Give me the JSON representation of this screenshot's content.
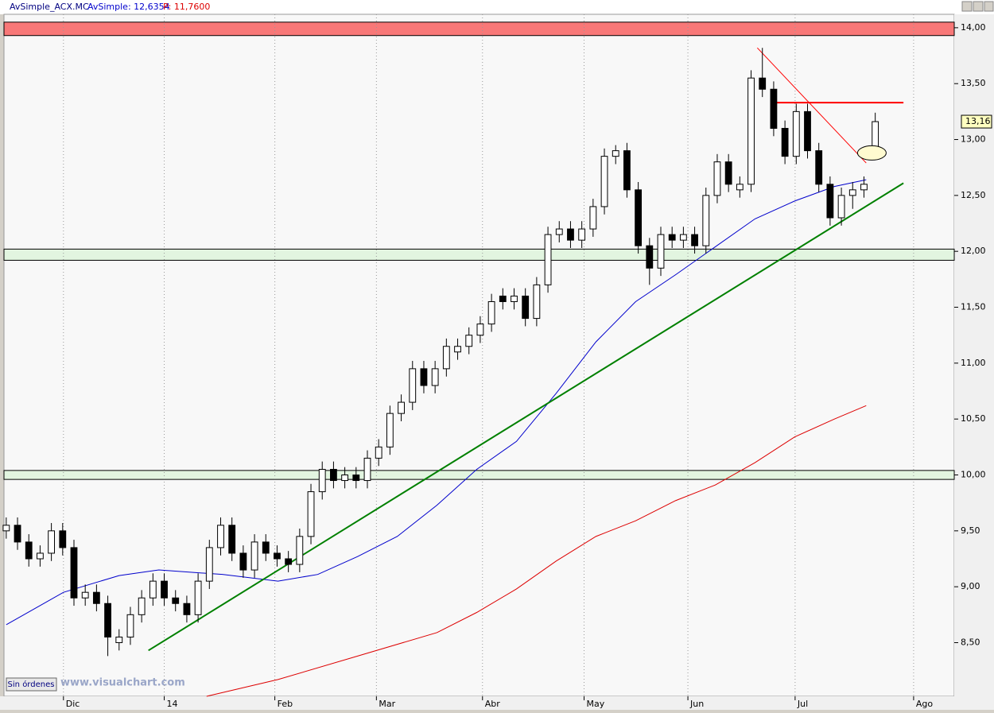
{
  "header": {
    "symbol": "AvSimple_ACX.MC",
    "average": "AvSimple: 12,6354",
    "price": "P: 11,7600"
  },
  "footer": {
    "button": "Sin órdenes",
    "watermark": "www.visualchart.com"
  },
  "chart_data": {
    "type": "candlestick",
    "open": [
      9.5,
      9.55,
      9.4,
      9.25,
      9.3,
      9.5,
      9.35,
      8.9,
      8.95,
      8.85,
      8.5,
      8.55,
      8.75,
      8.9,
      9.05,
      8.9,
      8.85,
      8.75,
      9.05,
      9.35,
      9.55,
      9.3,
      9.15,
      9.4,
      9.3,
      9.25,
      9.2,
      9.45,
      9.85,
      10.05,
      9.95,
      10.0,
      9.95,
      10.15,
      10.25,
      10.55,
      10.65,
      10.95,
      10.8,
      10.95,
      11.1,
      11.15,
      11.25,
      11.35,
      11.6,
      11.55,
      11.6,
      11.4,
      11.7,
      12.15,
      12.2,
      12.1,
      12.2,
      12.4,
      12.85,
      12.9,
      12.55,
      12.05,
      11.85,
      12.15,
      12.1,
      12.15,
      12.05,
      12.5,
      12.8,
      12.55,
      12.6,
      13.55,
      13.45,
      13.1,
      12.85,
      13.25,
      12.9,
      12.6,
      12.3,
      12.5,
      12.55,
      12.9
    ],
    "high": [
      9.62,
      9.62,
      9.47,
      9.37,
      9.57,
      9.57,
      9.42,
      9.02,
      9.02,
      8.92,
      8.62,
      8.82,
      8.97,
      9.12,
      9.12,
      8.97,
      8.92,
      9.12,
      9.42,
      9.62,
      9.62,
      9.37,
      9.47,
      9.47,
      9.37,
      9.32,
      9.52,
      9.92,
      10.12,
      10.12,
      10.07,
      10.07,
      10.22,
      10.32,
      10.62,
      10.72,
      11.02,
      11.02,
      11.02,
      11.22,
      11.22,
      11.32,
      11.42,
      11.62,
      11.67,
      11.67,
      11.67,
      11.77,
      12.22,
      12.27,
      12.27,
      12.27,
      12.47,
      12.92,
      12.95,
      12.97,
      12.62,
      12.12,
      12.22,
      12.22,
      12.22,
      12.22,
      12.57,
      12.87,
      12.87,
      12.67,
      13.62,
      13.82,
      13.52,
      13.17,
      13.32,
      13.32,
      12.97,
      12.67,
      12.57,
      12.62,
      12.67,
      13.24
    ],
    "low": [
      9.43,
      9.33,
      9.18,
      9.18,
      9.23,
      9.28,
      8.83,
      8.83,
      8.78,
      8.38,
      8.43,
      8.48,
      8.68,
      8.83,
      8.83,
      8.78,
      8.68,
      8.68,
      8.98,
      9.28,
      9.23,
      9.08,
      9.08,
      9.23,
      9.18,
      9.13,
      9.13,
      9.38,
      9.78,
      9.88,
      9.88,
      9.88,
      9.88,
      10.08,
      10.18,
      10.48,
      10.58,
      10.73,
      10.73,
      10.88,
      11.03,
      11.08,
      11.18,
      11.28,
      11.48,
      11.48,
      11.33,
      11.33,
      11.63,
      12.08,
      12.03,
      12.03,
      12.13,
      12.33,
      12.78,
      12.48,
      11.98,
      11.7,
      11.78,
      12.03,
      12.03,
      11.98,
      11.98,
      12.43,
      12.53,
      12.48,
      12.53,
      13.38,
      13.03,
      12.78,
      12.78,
      12.83,
      12.53,
      12.23,
      12.23,
      12.38,
      12.48,
      12.83
    ],
    "close": [
      9.55,
      9.4,
      9.25,
      9.3,
      9.5,
      9.35,
      8.9,
      8.95,
      8.85,
      8.55,
      8.55,
      8.75,
      8.9,
      9.05,
      8.9,
      8.85,
      8.75,
      9.05,
      9.35,
      9.55,
      9.3,
      9.15,
      9.4,
      9.3,
      9.25,
      9.2,
      9.45,
      9.85,
      10.05,
      9.95,
      10.0,
      9.95,
      10.15,
      10.25,
      10.55,
      10.65,
      10.95,
      10.8,
      10.95,
      11.15,
      11.15,
      11.25,
      11.35,
      11.55,
      11.55,
      11.6,
      11.4,
      11.7,
      12.15,
      12.2,
      12.1,
      12.2,
      12.4,
      12.85,
      12.9,
      12.55,
      12.05,
      11.85,
      12.15,
      12.1,
      12.15,
      12.05,
      12.5,
      12.8,
      12.6,
      12.6,
      13.55,
      13.45,
      13.1,
      12.85,
      13.25,
      12.9,
      12.6,
      12.3,
      12.5,
      12.55,
      12.6,
      13.16
    ],
    "averages": [
      {
        "color": "#0000cc",
        "x": [
          0,
          5.07,
          10,
          13.52,
          19.15,
          24.08,
          27.6,
          31.13,
          34.65,
          38.17,
          41.69,
          45.21,
          48.73,
          52.25,
          55.77,
          59.3,
          62.82,
          66.34,
          69.86,
          73.38,
          76.2
        ],
        "values": [
          8.66,
          8.95,
          9.1,
          9.15,
          9.11,
          9.05,
          9.11,
          9.27,
          9.45,
          9.73,
          10.05,
          10.3,
          10.73,
          11.19,
          11.55,
          11.79,
          12.04,
          12.29,
          12.45,
          12.58,
          12.64
        ]
      },
      {
        "color": "#dd0000",
        "x": [
          17.75,
          24.08,
          31.13,
          38.17,
          41.69,
          45.21,
          48.73,
          52.25,
          55.77,
          59.3,
          62.82,
          66.34,
          69.86,
          73.38,
          76.2
        ],
        "values": [
          8.02,
          8.17,
          8.38,
          8.59,
          8.77,
          8.98,
          9.23,
          9.45,
          9.59,
          9.77,
          9.91,
          10.11,
          10.34,
          10.5,
          10.62
        ]
      }
    ],
    "trendlines": [
      {
        "color": "#008000",
        "x": [
          12.6,
          79.5
        ],
        "values": [
          8.43,
          12.61
        ]
      },
      {
        "color": "#ff0000",
        "x": [
          66.55,
          76.2
        ],
        "values": [
          13.82,
          12.79
        ]
      },
      {
        "color": "#ff0000",
        "x": [
          67.8,
          79.5
        ],
        "values": [
          13.33,
          13.33
        ]
      }
    ],
    "zones": [
      {
        "color": "#f87878",
        "values": [
          13.93,
          14.05
        ]
      },
      {
        "color": "#e2f5e0",
        "values": [
          11.92,
          12.02
        ]
      },
      {
        "color": "#e2f5e0",
        "values": [
          9.96,
          10.04
        ]
      }
    ],
    "ellipse": {
      "x": 76.7,
      "value": 12.88
    },
    "last_price": {
      "value": 13.16,
      "label": "13,16"
    },
    "xlim": [
      -0.2,
      84
    ],
    "xticks": [
      {
        "value": 5.07,
        "label": "Dic"
      },
      {
        "value": 14.0,
        "label": "14"
      },
      {
        "value": 23.8,
        "label": "Feb"
      },
      {
        "value": 32.8,
        "label": "Mar"
      },
      {
        "value": 42.2,
        "label": "Abr"
      },
      {
        "value": 51.2,
        "label": "May"
      },
      {
        "value": 60.4,
        "label": "Jun"
      },
      {
        "value": 69.9,
        "label": "Jul"
      },
      {
        "value": 80.4,
        "label": "Ago"
      }
    ],
    "ylim": [
      8.02,
      14.12
    ],
    "yticks": [
      {
        "value": 8.5,
        "label": "8,50"
      },
      {
        "value": 9,
        "label": "9,00"
      },
      {
        "value": 9.5,
        "label": "9,50"
      },
      {
        "value": 10,
        "label": "10,00"
      },
      {
        "value": 10.5,
        "label": "10,50"
      },
      {
        "value": 11,
        "label": "11,00"
      },
      {
        "value": 11.5,
        "label": "11,50"
      },
      {
        "value": 12,
        "label": "12,00"
      },
      {
        "value": 12.5,
        "label": "12,50"
      },
      {
        "value": 13,
        "label": "13,00"
      },
      {
        "value": 13.5,
        "label": "13,50"
      },
      {
        "value": 14,
        "label": "14,00"
      }
    ],
    "grid": true
  }
}
